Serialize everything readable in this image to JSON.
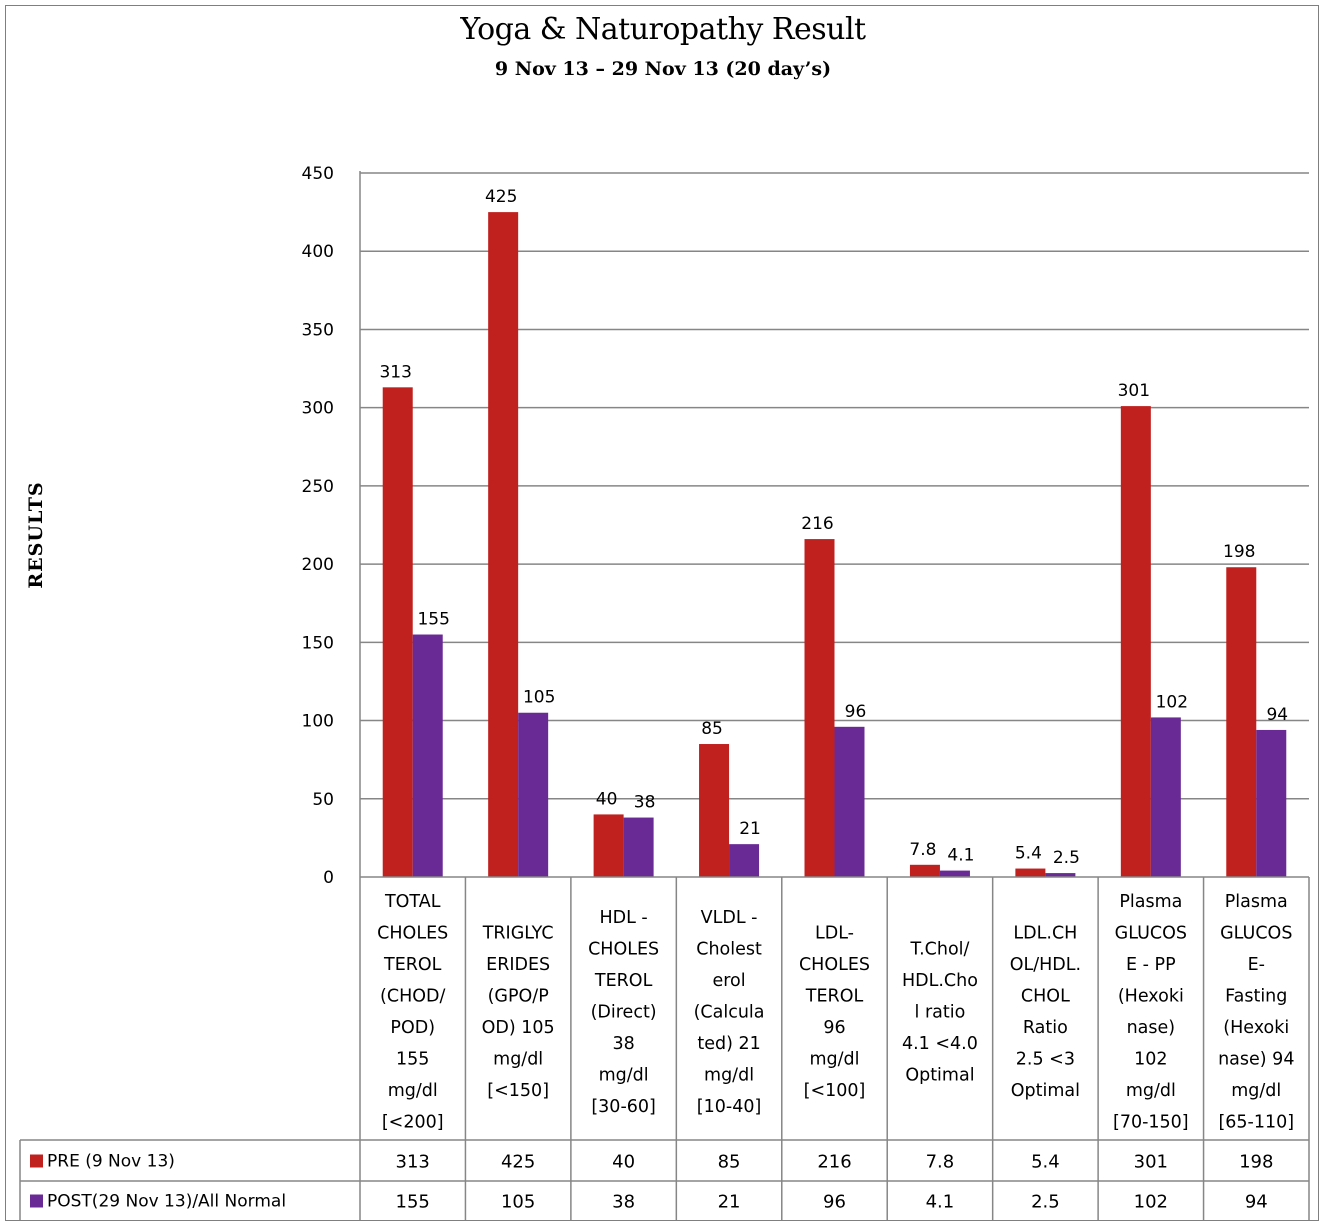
{
  "chart_data": {
    "type": "bar",
    "title": "Yoga & Naturopathy Result",
    "subtitle": "9 Nov 13 – 29 Nov 13 (20 day’s)",
    "xlabel": "",
    "ylabel": "RESULTS",
    "ylim": [
      0,
      450
    ],
    "ytick_step": 50,
    "grid": true,
    "legend_placement": "data-table-left",
    "categories": [
      [
        "TOTAL",
        "CHOLES",
        "TEROL",
        "(CHOD/",
        "POD)",
        "155",
        "mg/dl",
        "[<200]"
      ],
      [
        "TRIGLYC",
        "ERIDES",
        "(GPO/P",
        "OD) 105",
        "mg/dl",
        "[<150]"
      ],
      [
        "HDL -",
        "CHOLES",
        "TEROL",
        "(Direct)",
        "38",
        "mg/dl",
        "[30-60]"
      ],
      [
        "VLDL -",
        "Cholest",
        "erol",
        "(Calcula",
        "ted) 21",
        "mg/dl",
        "[10-40]"
      ],
      [
        "LDL-",
        "CHOLES",
        "TEROL",
        "96",
        "mg/dl",
        "[<100]"
      ],
      [
        "T.Chol/",
        "HDL.Cho",
        "l ratio",
        "4.1 <4.0",
        "Optimal"
      ],
      [
        "LDL.CH",
        "OL/HDL.",
        "CHOL",
        "Ratio",
        "2.5 <3",
        "Optimal"
      ],
      [
        "Plasma",
        "GLUCOS",
        "E - PP",
        "(Hexoki",
        "nase)",
        "102",
        "mg/dl",
        "[70-150]"
      ],
      [
        "Plasma",
        "GLUCOS",
        "E-",
        "Fasting",
        "(Hexoki",
        "nase) 94",
        "mg/dl",
        "[65-110]"
      ]
    ],
    "series": [
      {
        "name": "PRE (9 Nov 13)",
        "color": "#c0201e",
        "values": [
          313,
          425,
          40,
          85,
          216,
          7.8,
          5.4,
          301,
          198
        ]
      },
      {
        "name": "POST(29 Nov 13)/All Normal",
        "color": "#6a2a96",
        "values": [
          155,
          105,
          38,
          21,
          96,
          4.1,
          2.5,
          102,
          94
        ]
      }
    ]
  }
}
